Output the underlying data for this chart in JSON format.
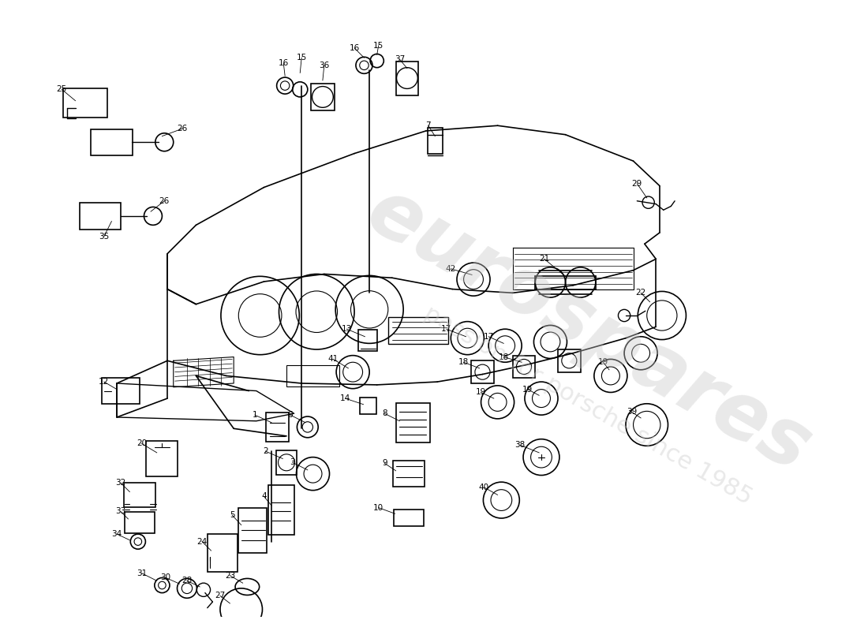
{
  "background_color": "#ffffff",
  "line_color": "#000000",
  "watermark_color_hex": "#c8c8c8",
  "watermark_alpha": 0.4,
  "figure_width": 11.0,
  "figure_height": 8.0,
  "dpi": 100
}
